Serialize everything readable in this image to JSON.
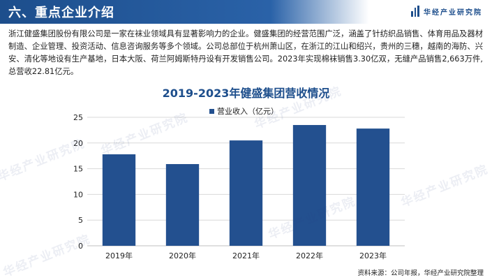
{
  "header": {
    "section_title": "六、重点企业介绍",
    "logo_text": "华经产业研究院",
    "accent_color": "#1d4e8c"
  },
  "intro_text": "浙江健盛集团股份有限公司是一家在袜业领域具有显著影响力的企业。健盛集团的经营范围广泛，涵盖了针纺织品销售、体育用品及器材制造、企业管理、投资活动、信息咨询服务等多个领域。公司总部位于杭州萧山区，在浙江的江山和绍兴，贵州的三穗，越南的海防、兴安、清化等地设有生产基地，日本大阪、荷兰阿姆斯特丹设有开发销售公司。2023年实现棉袜销售3.30亿双，无缝产品销售2,663万件,总营收22.81亿元。",
  "watermark_text": "华经产业研究院",
  "source_note": "资料来源：公司年报，华经产业研究院整理",
  "chart_data": {
    "type": "bar",
    "title": "2019-2023年健盛集团营收情况",
    "categories": [
      "2019年",
      "2020年",
      "2021年",
      "2022年",
      "2023年"
    ],
    "series": [
      {
        "name": "营业收入（亿元）",
        "values": [
          17.8,
          15.9,
          20.5,
          23.5,
          22.81
        ],
        "color": "#23508f"
      }
    ],
    "y_ticks": [
      "0",
      "5",
      "10",
      "15",
      "20",
      "25"
    ],
    "ylim": [
      0,
      25
    ],
    "grid": true,
    "legend_position": "top-center"
  }
}
